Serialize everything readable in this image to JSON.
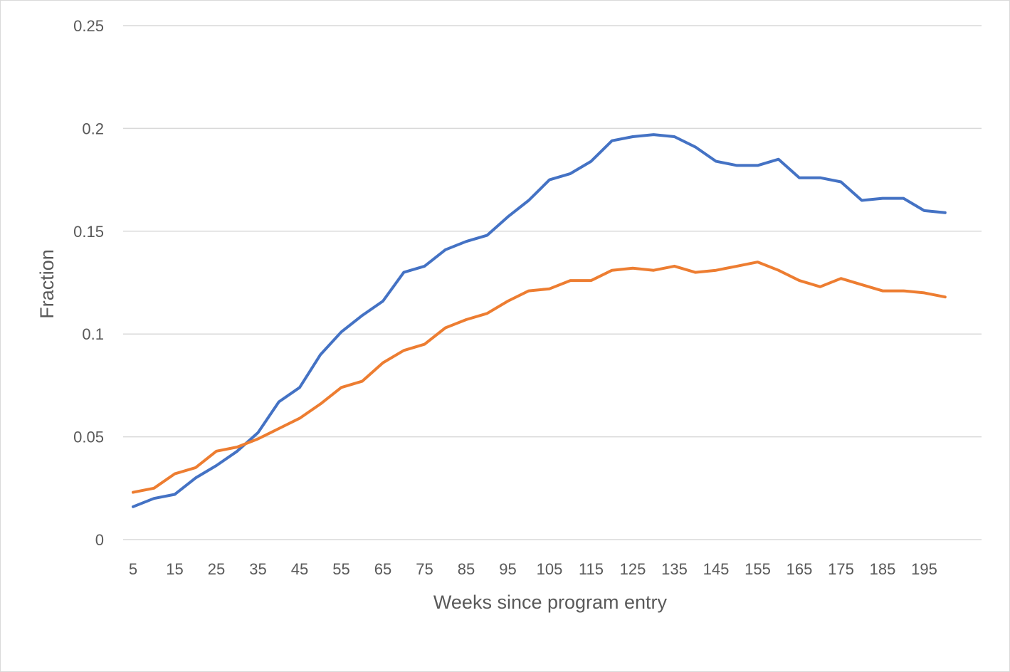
{
  "chart_data": {
    "type": "line",
    "xlabel": "Weeks since program entry",
    "ylabel": "Fraction",
    "ylim": [
      0,
      0.25
    ],
    "y_ticks": [
      "0",
      "0.05",
      "0.1",
      "0.15",
      "0.2",
      "0.25"
    ],
    "y_tick_values": [
      0,
      0.05,
      0.1,
      0.15,
      0.2,
      0.25
    ],
    "x_tick_labels": [
      "5",
      "15",
      "25",
      "35",
      "45",
      "55",
      "65",
      "75",
      "85",
      "95",
      "105",
      "115",
      "125",
      "135",
      "145",
      "155",
      "165",
      "175",
      "185",
      "195"
    ],
    "grid": true,
    "legend": "none",
    "x": [
      5,
      10,
      15,
      20,
      25,
      30,
      35,
      40,
      45,
      50,
      55,
      60,
      65,
      70,
      75,
      80,
      85,
      90,
      95,
      100,
      105,
      110,
      115,
      120,
      125,
      130,
      135,
      140,
      145,
      150,
      155,
      160,
      165,
      170,
      175,
      180,
      185,
      190,
      195,
      200
    ],
    "series": [
      {
        "color": "#4472c4",
        "values": [
          0.016,
          0.02,
          0.022,
          0.03,
          0.036,
          0.043,
          0.052,
          0.067,
          0.074,
          0.09,
          0.101,
          0.109,
          0.116,
          0.13,
          0.133,
          0.141,
          0.145,
          0.148,
          0.157,
          0.165,
          0.175,
          0.178,
          0.184,
          0.194,
          0.196,
          0.197,
          0.196,
          0.191,
          0.184,
          0.182,
          0.182,
          0.185,
          0.176,
          0.176,
          0.174,
          0.165,
          0.166,
          0.166,
          0.16,
          0.159
        ]
      },
      {
        "color": "#ed7d31",
        "values": [
          0.023,
          0.025,
          0.032,
          0.035,
          0.043,
          0.045,
          0.049,
          0.054,
          0.059,
          0.066,
          0.074,
          0.077,
          0.086,
          0.092,
          0.095,
          0.103,
          0.107,
          0.11,
          0.116,
          0.121,
          0.122,
          0.126,
          0.126,
          0.131,
          0.132,
          0.131,
          0.133,
          0.13,
          0.131,
          0.133,
          0.135,
          0.131,
          0.126,
          0.123,
          0.127,
          0.124,
          0.121,
          0.121,
          0.12,
          0.118
        ]
      }
    ]
  }
}
